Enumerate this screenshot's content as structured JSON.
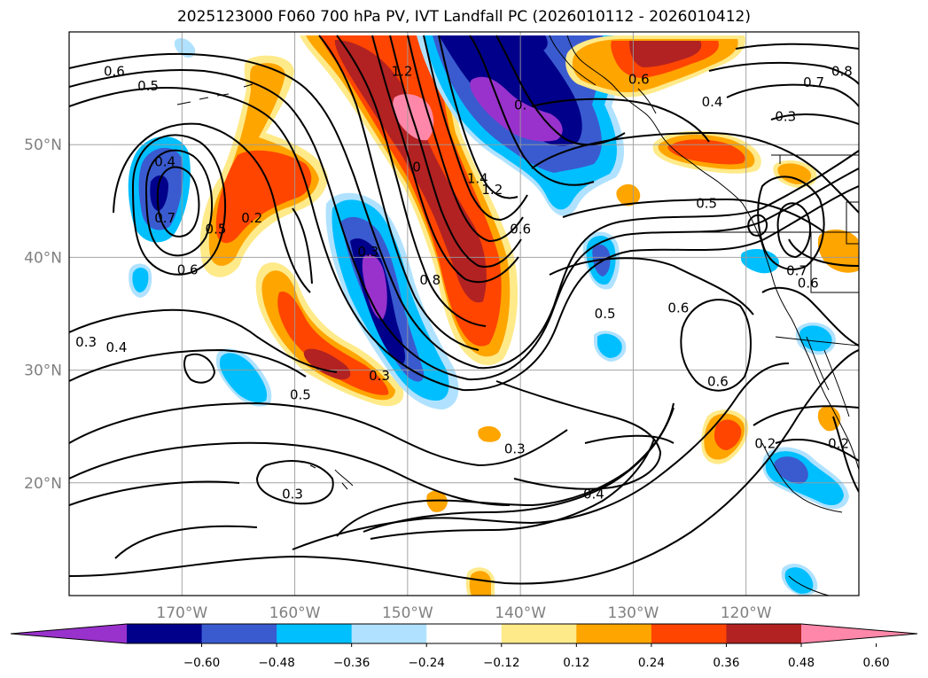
{
  "title": "2025123000 F060 700 hPa PV, IVT Landfall PC (2026010112 - 2026010412)",
  "map": {
    "lon_range": [
      -180,
      -110
    ],
    "lat_range": [
      10,
      60
    ],
    "lon_ticks": [
      {
        "value": -170,
        "label": "170°W"
      },
      {
        "value": -160,
        "label": "160°W"
      },
      {
        "value": -150,
        "label": "150°W"
      },
      {
        "value": -140,
        "label": "140°W"
      },
      {
        "value": -130,
        "label": "130°W"
      },
      {
        "value": -120,
        "label": "120°W"
      }
    ],
    "lat_ticks": [
      {
        "value": 20,
        "label": "20°N"
      },
      {
        "value": 30,
        "label": "30°N"
      },
      {
        "value": 40,
        "label": "40°N"
      },
      {
        "value": 50,
        "label": "50°N"
      }
    ],
    "gridlines": true
  },
  "colorbar": {
    "extend": "both",
    "levels": [
      -0.72,
      -0.6,
      -0.48,
      -0.36,
      -0.24,
      -0.12,
      0.12,
      0.24,
      0.36,
      0.48,
      0.6,
      0.72
    ],
    "colors": [
      "#9932cc",
      "#00008b",
      "#3a5bcf",
      "#00bfff",
      "#b0e2ff",
      "#ffffff",
      "#ffea8a",
      "#ffa500",
      "#ff4500",
      "#b22222",
      "#ff88aa"
    ],
    "under_color": "#9932cc",
    "over_color": "#ff88aa",
    "tick_labels": [
      "−0.60",
      "−0.48",
      "−0.36",
      "−0.24",
      "−0.12",
      "0.12",
      "0.24",
      "0.36",
      "0.48",
      "0.60"
    ]
  },
  "contour_labels": [
    {
      "text": "0.6",
      "lon": -176,
      "lat": 56.5
    },
    {
      "text": "0.5",
      "lon": -173,
      "lat": 55.2
    },
    {
      "text": "0.4",
      "lon": -171.5,
      "lat": 48.5
    },
    {
      "text": "0.7",
      "lon": -171.5,
      "lat": 43.5
    },
    {
      "text": "0.6",
      "lon": -169.5,
      "lat": 38.9
    },
    {
      "text": "0.5",
      "lon": -167,
      "lat": 42.5
    },
    {
      "text": "0.2",
      "lon": -163.8,
      "lat": 43.5
    },
    {
      "text": "1.2",
      "lon": -150.5,
      "lat": 56.5
    },
    {
      "text": "0.3",
      "lon": -153.5,
      "lat": 40.5
    },
    {
      "text": "0",
      "lon": -149.2,
      "lat": 48.0
    },
    {
      "text": "0.8",
      "lon": -148,
      "lat": 38.0
    },
    {
      "text": "1.4",
      "lon": -143.8,
      "lat": 47.0
    },
    {
      "text": "1.2",
      "lon": -142.5,
      "lat": 46.0
    },
    {
      "text": "0.",
      "lon": -140,
      "lat": 53.5
    },
    {
      "text": "0.6",
      "lon": -140,
      "lat": 42.5
    },
    {
      "text": "0.6",
      "lon": -129.5,
      "lat": 55.8
    },
    {
      "text": "0.7",
      "lon": -114,
      "lat": 55.5
    },
    {
      "text": "0.8",
      "lon": -111.5,
      "lat": 56.5
    },
    {
      "text": "0.4",
      "lon": -123,
      "lat": 53.8
    },
    {
      "text": "0.3",
      "lon": -116.5,
      "lat": 52.5
    },
    {
      "text": "0.5",
      "lon": -123.5,
      "lat": 44.8
    },
    {
      "text": "0.6",
      "lon": -126,
      "lat": 35.5
    },
    {
      "text": "0.5",
      "lon": -132.5,
      "lat": 35.0
    },
    {
      "text": "0.7",
      "lon": -115.5,
      "lat": 38.8
    },
    {
      "text": "0.6",
      "lon": -114.5,
      "lat": 37.7
    },
    {
      "text": "0.3",
      "lon": -178.5,
      "lat": 32.5
    },
    {
      "text": "0.4",
      "lon": -175.8,
      "lat": 32.0
    },
    {
      "text": "0.5",
      "lon": -159.5,
      "lat": 27.8
    },
    {
      "text": "0.3",
      "lon": -152.5,
      "lat": 29.5
    },
    {
      "text": "0.6",
      "lon": -122.5,
      "lat": 29.0
    },
    {
      "text": "0.2",
      "lon": -118.3,
      "lat": 23.5
    },
    {
      "text": "0.2",
      "lon": -111.8,
      "lat": 23.5
    },
    {
      "text": "0.3",
      "lon": -140.5,
      "lat": 23.0
    },
    {
      "text": "0.3",
      "lon": -160.2,
      "lat": 19.0
    },
    {
      "text": "0.4",
      "lon": -133.5,
      "lat": 19.0
    }
  ]
}
